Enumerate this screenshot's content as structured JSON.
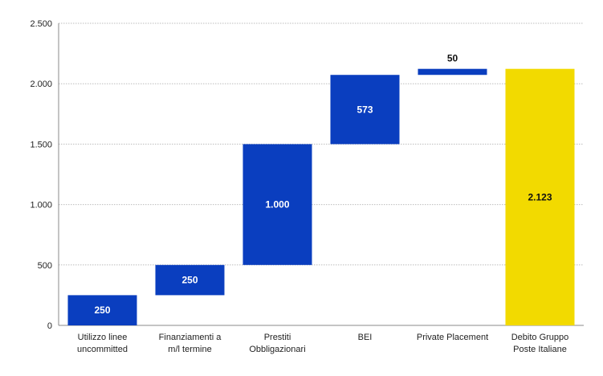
{
  "chart_data": {
    "type": "bar",
    "subtype": "waterfall",
    "categories": [
      [
        "Utilizzo linee",
        "uncommitted"
      ],
      [
        "Finanziamenti a",
        "m/l termine"
      ],
      [
        "Prestiti",
        "Obbligazionari"
      ],
      [
        "BEI"
      ],
      [
        "Private Placement"
      ],
      [
        "Debito Gruppo",
        "Poste Italiane"
      ]
    ],
    "bars": [
      {
        "start": 0,
        "end": 250,
        "label": "250",
        "kind": "increment"
      },
      {
        "start": 250,
        "end": 500,
        "label": "250",
        "kind": "increment"
      },
      {
        "start": 500,
        "end": 1500,
        "label": "1.000",
        "kind": "increment"
      },
      {
        "start": 1500,
        "end": 2073,
        "label": "573",
        "kind": "increment"
      },
      {
        "start": 2073,
        "end": 2123,
        "label": "50",
        "kind": "increment"
      },
      {
        "start": 0,
        "end": 2123,
        "label": "2.123",
        "kind": "total"
      }
    ],
    "yticks": [
      {
        "value": 0,
        "label": "0"
      },
      {
        "value": 500,
        "label": "500"
      },
      {
        "value": 1000,
        "label": "1.000"
      },
      {
        "value": 1500,
        "label": "1.500"
      },
      {
        "value": 2000,
        "label": "2.000"
      },
      {
        "value": 2500,
        "label": "2.500"
      }
    ],
    "ylim": [
      0,
      2500
    ],
    "grid": true,
    "title": "",
    "xlabel": "",
    "ylabel": "",
    "colors": {
      "increment": "#0A3EBF",
      "total": "#F2DA00",
      "increment_label": "#FFFFFF",
      "total_label": "#111111",
      "outside_label": "#111111",
      "grid": "#BDBDBD",
      "axis": "#888888"
    }
  }
}
